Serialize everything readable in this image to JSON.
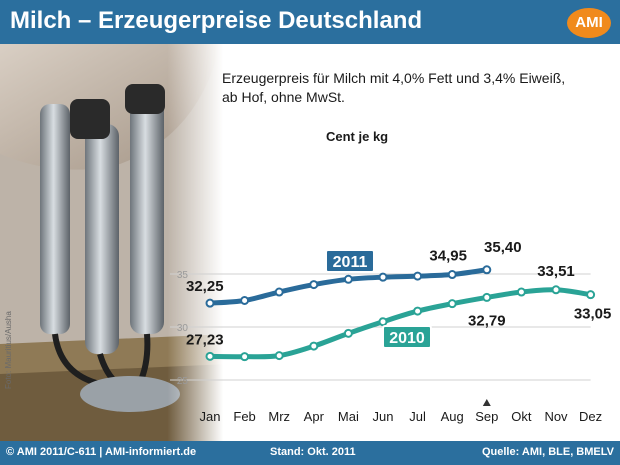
{
  "header": {
    "title": "Milch – Erzeugerpreise Deutschland",
    "logo_text": "AMI"
  },
  "subtitle": {
    "line1": "Erzeugerpreis für Milch mit 4,0% Fett und 3,4% Eiweiß,",
    "line2": "ab Hof, ohne MwSt."
  },
  "photo_credit": "Foto: Mauritius/Ausha",
  "footer": {
    "copyright": "© AMI 2011/C-611 | AMI-informiert.de",
    "stand": "Stand: Okt. 2011",
    "quelle": "Quelle: AMI, BLE, BMELV"
  },
  "colors": {
    "header_bg": "#2b6f9e",
    "series_2011": "#2a6b9a",
    "series_2010": "#2aa396",
    "logo": "#f08a1c"
  },
  "chart_data": {
    "type": "line",
    "ylabel": "Cent je kg",
    "categories": [
      "Jan",
      "Feb",
      "Mrz",
      "Apr",
      "Mai",
      "Jun",
      "Jul",
      "Aug",
      "Sep",
      "Okt",
      "Nov",
      "Dez"
    ],
    "ylim": [
      25,
      36
    ],
    "yticks": [
      25,
      30,
      35
    ],
    "marked_category": "Sep",
    "series": [
      {
        "name": "2011",
        "values": [
          32.25,
          32.5,
          33.3,
          34.0,
          34.5,
          34.7,
          34.8,
          34.95,
          35.4,
          null,
          null,
          null
        ]
      },
      {
        "name": "2010",
        "values": [
          27.23,
          27.2,
          27.3,
          28.2,
          29.4,
          30.5,
          31.5,
          32.2,
          32.79,
          33.3,
          33.51,
          33.05
        ]
      }
    ],
    "annotations": [
      {
        "series": 0,
        "index": 0,
        "text": "32,25"
      },
      {
        "series": 0,
        "index": 7,
        "text": "34,95"
      },
      {
        "series": 0,
        "index": 8,
        "text": "35,40"
      },
      {
        "series": 1,
        "index": 0,
        "text": "27,23"
      },
      {
        "series": 1,
        "index": 8,
        "text": "32,79"
      },
      {
        "series": 1,
        "index": 10,
        "text": "33,51"
      },
      {
        "series": 1,
        "index": 11,
        "text": "33,05"
      }
    ]
  }
}
